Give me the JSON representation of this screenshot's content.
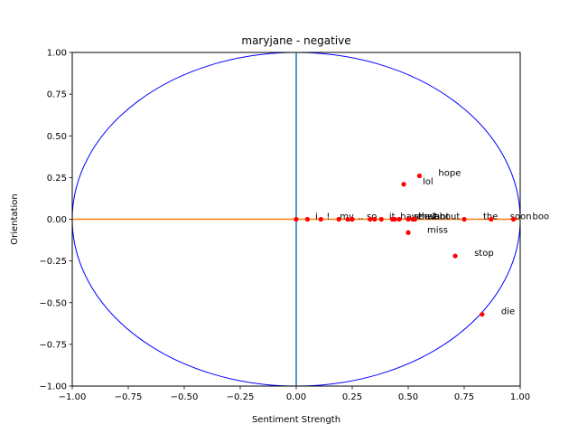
{
  "chart_data": {
    "type": "scatter",
    "title": "maryjane - negative",
    "xlabel": "Sentiment Strength",
    "ylabel": "Orientation",
    "xlim": [
      -1.0,
      1.0
    ],
    "ylim": [
      -1.0,
      1.0
    ],
    "xticks": [
      "−1.00",
      "−0.75",
      "−0.50",
      "−0.25",
      "0.00",
      "0.25",
      "0.50",
      "0.75",
      "1.00"
    ],
    "yticks": [
      "1.00",
      "0.75",
      "0.50",
      "0.25",
      "0.00",
      "−0.25",
      "−0.50",
      "−0.75",
      "−1.00"
    ],
    "grid": false,
    "colors": {
      "points": "#ff0000",
      "circle": "#0000ff",
      "vertical_line": "#1f77b4",
      "horizontal_line": "#ff7f0e"
    },
    "points": [
      {
        "label": "i",
        "x": 0.0,
        "y": 0.0
      },
      {
        "label": "!",
        "x": 0.05,
        "y": 0.0
      },
      {
        "label": "my",
        "x": 0.11,
        "y": 0.0
      },
      {
        "label": "..",
        "x": 0.19,
        "y": 0.0
      },
      {
        "label": "so",
        "x": 0.23,
        "y": 0.0
      },
      {
        "label": "",
        "x": 0.25,
        "y": 0.0
      },
      {
        "label": "it",
        "x": 0.33,
        "y": 0.0
      },
      {
        "label": "",
        "x": 0.35,
        "y": 0.0
      },
      {
        "label": "have",
        "x": 0.38,
        "y": 0.0
      },
      {
        "label": "",
        "x": 0.43,
        "y": 0.0
      },
      {
        "label": "she",
        "x": 0.44,
        "y": 0.0
      },
      {
        "label": "that",
        "x": 0.46,
        "y": 0.0
      },
      {
        "label": "want",
        "x": 0.5,
        "y": 0.0
      },
      {
        "label": "2",
        "x": 0.52,
        "y": 0.0
      },
      {
        "label": "about",
        "x": 0.53,
        "y": 0.0
      },
      {
        "label": "the",
        "x": 0.75,
        "y": 0.0
      },
      {
        "label": "soon",
        "x": 0.87,
        "y": 0.0
      },
      {
        "label": "boo",
        "x": 0.97,
        "y": 0.0
      },
      {
        "label": "lol",
        "x": 0.48,
        "y": 0.21
      },
      {
        "label": "hope",
        "x": 0.55,
        "y": 0.26
      },
      {
        "label": "miss",
        "x": 0.5,
        "y": -0.08
      },
      {
        "label": "stop",
        "x": 0.71,
        "y": -0.22
      },
      {
        "label": "die",
        "x": 0.83,
        "y": -0.57
      }
    ]
  }
}
